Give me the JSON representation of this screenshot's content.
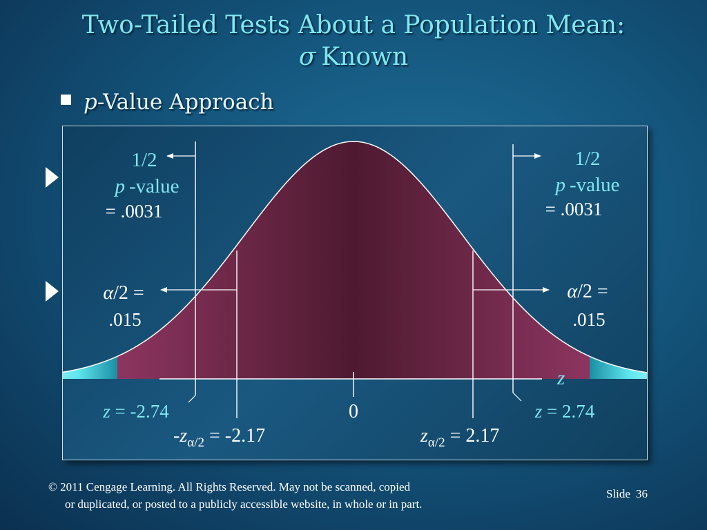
{
  "slide": {
    "title_line1": "Two-Tailed Tests About a Population Mean:",
    "title_sigma": "σ",
    "title_line2_text": "Known",
    "bullet_italic": "p",
    "bullet_rest": "-Value Approach",
    "footer_line1": "© 2011  Cengage Learning.  All Rights Reserved.  May not be scanned, copied",
    "footer_line2": "or duplicated, or posted to a publicly accessible website, in whole or in part.",
    "slide_label": "Slide",
    "slide_number": "36"
  },
  "diagram": {
    "left_p": {
      "fraction": "1/2",
      "p_italic": "p",
      "p_rest": "-value",
      "value": "= .0031"
    },
    "right_p": {
      "fraction": "1/2",
      "p_italic": "p",
      "p_rest": "-value",
      "value": "= .0031"
    },
    "left_alpha": {
      "alpha": "α",
      "rest": "/2 =",
      "value": ".015"
    },
    "right_alpha": {
      "alpha": "α",
      "rest": "/2 =",
      "value": ".015"
    },
    "axis_label": "z",
    "center_label": "0",
    "z_left": {
      "z": "z",
      "rest": " = -2.74"
    },
    "z_right": {
      "z": "z",
      "rest": " = 2.74"
    },
    "zcrit_left": {
      "prefix": "-",
      "z": "z",
      "sub": "α/2",
      "rest": " = -2.17"
    },
    "zcrit_right": {
      "prefix": "",
      "z": "z",
      "sub": "α/2",
      "rest": " = 2.17"
    },
    "z_stat": 2.74,
    "z_crit": 2.17,
    "curve_color": "#6a2444",
    "tail_color": "#5fe6ee"
  }
}
